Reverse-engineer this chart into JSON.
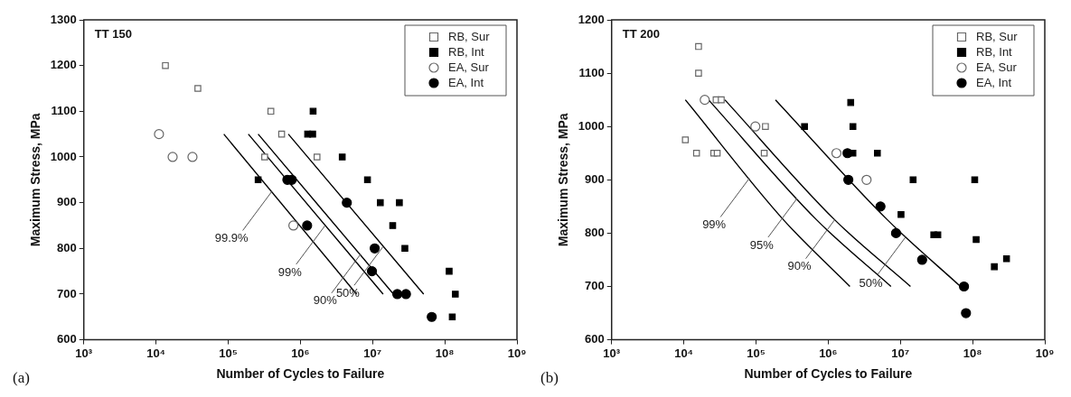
{
  "chart_data": [
    {
      "type": "scatter",
      "title": "TT 150",
      "xlabel": "Number of Cycles to Failure",
      "ylabel": "Maximum Stress, MPa",
      "log": "x",
      "xlim": [
        1000,
        1000000000
      ],
      "ylim": [
        600,
        1300
      ],
      "xticks": [
        {
          "value": 1000,
          "label": "10³"
        },
        {
          "value": 10000,
          "label": "10⁴"
        },
        {
          "value": 100000,
          "label": "10⁵"
        },
        {
          "value": 1000000,
          "label": "10⁶"
        },
        {
          "value": 10000000,
          "label": "10⁷"
        },
        {
          "value": 100000000,
          "label": "10⁸"
        },
        {
          "value": 1000000000,
          "label": "10⁹"
        }
      ],
      "yticks": [
        600,
        700,
        800,
        900,
        1000,
        1100,
        1200,
        1300
      ],
      "grid": false,
      "legend": "top right",
      "series": [
        {
          "name": "RB, Sur",
          "marker": "square",
          "color": "#ffffff",
          "x": [
            13500,
            38000,
            390000,
            550000,
            320000,
            1700000
          ],
          "values": [
            1200,
            1150,
            1100,
            1050,
            1000,
            1000
          ]
        },
        {
          "name": "RB, Int",
          "marker": "square",
          "color": "#000000",
          "x": [
            260000,
            1500000,
            1260000,
            1480000,
            3800000,
            8500000,
            12800000,
            23500000,
            19000000,
            28000000,
            115000000,
            140000000,
            127000000
          ],
          "values": [
            950,
            1100,
            1050,
            1050,
            1000,
            950,
            900,
            900,
            850,
            800,
            750,
            700,
            650
          ]
        },
        {
          "name": "EA, Sur",
          "marker": "circle",
          "color": "#ffffff",
          "x": [
            11000,
            17000,
            32000,
            800000
          ],
          "values": [
            1050,
            1000,
            1000,
            850
          ]
        },
        {
          "name": "EA, Int",
          "marker": "circle",
          "color": "#000000",
          "x": [
            660000,
            760000,
            1240000,
            4400000,
            10700000,
            9800000,
            22000000,
            29000000,
            66000000
          ],
          "values": [
            950,
            950,
            850,
            900,
            800,
            750,
            700,
            700,
            650
          ]
        },
        {
          "type": "line",
          "marker": "none",
          "color": "#000000",
          "x": [
            87000,
            6000000
          ],
          "values": [
            1050,
            700
          ]
        },
        {
          "type": "line",
          "marker": "none",
          "color": "#000000",
          "x": [
            190000,
            14000000
          ],
          "values": [
            1050,
            700
          ]
        },
        {
          "type": "line",
          "marker": "none",
          "color": "#000000",
          "x": [
            260000,
            19500000
          ],
          "values": [
            1050,
            700
          ]
        },
        {
          "type": "line",
          "marker": "none",
          "color": "#000000",
          "x": [
            680000,
            51000000
          ],
          "values": [
            1050,
            700
          ]
        }
      ],
      "annotations": [
        {
          "text": "99.9%",
          "x": 400000,
          "y": 924
        },
        {
          "text": "99%",
          "x": 2200000,
          "y": 850
        },
        {
          "text": "90%",
          "x": 6800000,
          "y": 787
        },
        {
          "text": "50%",
          "x": 14000000,
          "y": 804
        },
        "(a)"
      ]
    },
    {
      "type": "scatter",
      "title": "TT 200",
      "xlabel": "Number of Cycles to Failure",
      "ylabel": "Maximum Stress, MPa",
      "log": "x",
      "xlim": [
        1000,
        1000000000
      ],
      "ylim": [
        600,
        1200
      ],
      "xticks": [
        {
          "value": 1000,
          "label": "10³"
        },
        {
          "value": 10000,
          "label": "10⁴"
        },
        {
          "value": 100000,
          "label": "10⁵"
        },
        {
          "value": 1000000,
          "label": "10⁶"
        },
        {
          "value": 10000000,
          "label": "10⁷"
        },
        {
          "value": 100000000,
          "label": "10⁸"
        },
        {
          "value": 1000000000,
          "label": "10⁹"
        }
      ],
      "yticks": [
        600,
        700,
        800,
        900,
        1000,
        1100,
        1200
      ],
      "grid": false,
      "legend": "top right",
      "series": [
        {
          "name": "RB, Sur",
          "marker": "square",
          "color": "#ffffff",
          "x": [
            16000,
            16000,
            28000,
            33000,
            135000,
            10500,
            15000,
            26000,
            29000,
            130000
          ],
          "values": [
            1150,
            1100,
            1050,
            1050,
            1000,
            975,
            950,
            950,
            950,
            950
          ]
        },
        {
          "name": "RB, Int",
          "marker": "square",
          "color": "#000000",
          "x": [
            470000,
            2050000,
            2200000,
            2200000,
            4800000,
            15000000,
            107000000,
            10200000,
            29000000,
            33000000,
            112000000,
            200000000,
            295000000
          ],
          "values": [
            1000,
            1045,
            1000,
            950,
            950,
            900,
            900,
            835,
            797,
            797,
            788,
            737,
            752
          ]
        },
        {
          "name": "EA, Sur",
          "marker": "circle",
          "color": "#ffffff",
          "x": [
            19500,
            98000,
            1300000,
            3400000
          ],
          "values": [
            1050,
            1000,
            950,
            900
          ]
        },
        {
          "name": "EA, Int",
          "marker": "circle",
          "color": "#000000",
          "x": [
            1850000,
            1900000,
            5300000,
            8700000,
            20000000,
            76000000,
            81000000
          ],
          "values": [
            950,
            900,
            850,
            800,
            750,
            700,
            650
          ]
        },
        {
          "type": "line",
          "marker": "none",
          "color": "#000000",
          "x": [
            10500,
            240000,
            2000000
          ],
          "values": [
            1050,
            825,
            700
          ]
        },
        {
          "type": "line",
          "marker": "none",
          "color": "#000000",
          "x": [
            22000,
            690000,
            7400000
          ],
          "values": [
            1050,
            825,
            700
          ]
        },
        {
          "type": "line",
          "marker": "none",
          "color": "#000000",
          "x": [
            37000,
            1230000,
            13800000
          ],
          "values": [
            1050,
            825,
            700
          ]
        },
        {
          "type": "line",
          "marker": "none",
          "color": "#000000",
          "x": [
            186000,
            6600000,
            68000000
          ],
          "values": [
            1050,
            825,
            700
          ]
        }
      ],
      "annotations": [
        {
          "text": "99%",
          "x": 81000,
          "y": 903
        },
        {
          "text": "95%",
          "x": 370000,
          "y": 865
        },
        {
          "text": "90%",
          "x": 1230000,
          "y": 825
        },
        {
          "text": "50%",
          "x": 12000000,
          "y": 794
        },
        "(b)"
      ]
    }
  ]
}
